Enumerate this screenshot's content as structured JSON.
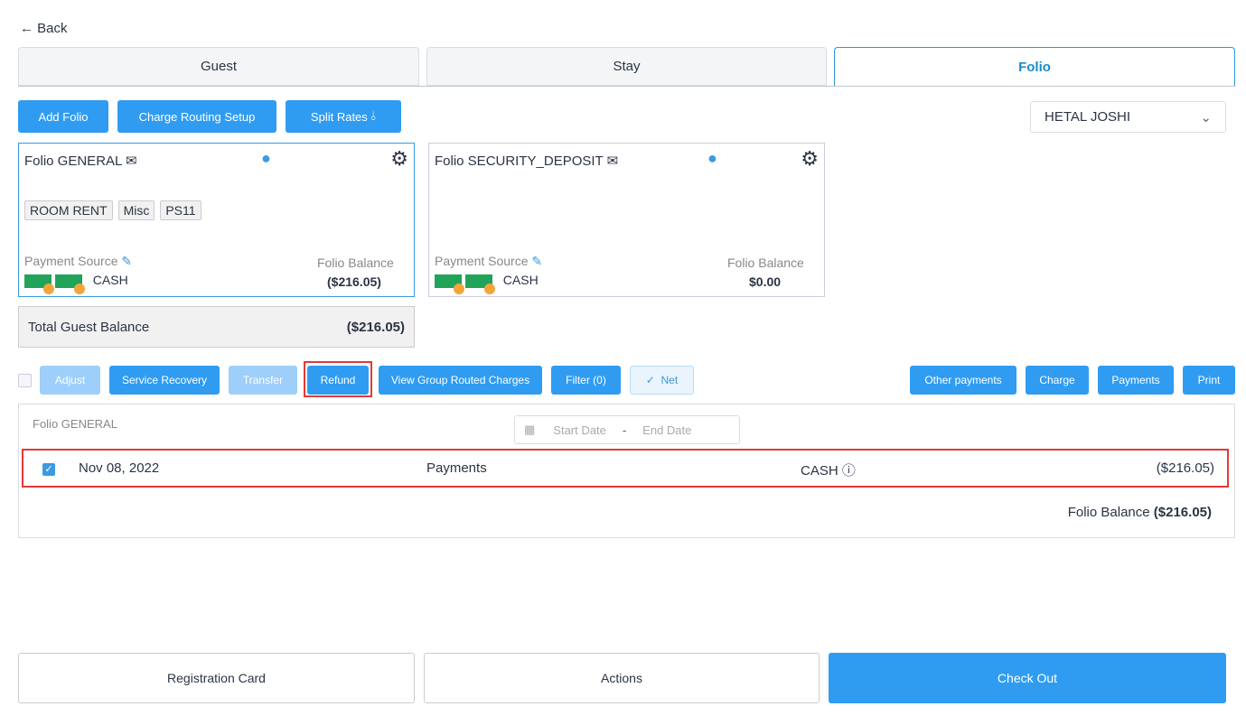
{
  "back": "Back",
  "tabs": [
    "Guest",
    "Stay",
    "Folio"
  ],
  "toolbar": {
    "add_folio": "Add Folio",
    "charge_routing": "Charge Routing Setup",
    "split_rates": "Split Rates",
    "guest_select": "HETAL JOSHI"
  },
  "folios": [
    {
      "title": "Folio GENERAL",
      "chips": [
        "ROOM RENT",
        "Misc",
        "PS11"
      ],
      "payment_source_label": "Payment Source",
      "payment_source": "CASH",
      "balance_label": "Folio Balance",
      "balance": "($216.05)"
    },
    {
      "title": "Folio SECURITY_DEPOSIT",
      "chips": [],
      "payment_source_label": "Payment Source",
      "payment_source": "CASH",
      "balance_label": "Folio Balance",
      "balance": "$0.00"
    }
  ],
  "total": {
    "label": "Total Guest Balance",
    "value": "($216.05)"
  },
  "actions": {
    "adjust": "Adjust",
    "service_recovery": "Service Recovery",
    "transfer": "Transfer",
    "refund": "Refund",
    "view_group": "View Group Routed Charges",
    "filter": "Filter (0)",
    "net": "Net",
    "other_payments": "Other payments",
    "charge": "Charge",
    "payments": "Payments",
    "print": "Print"
  },
  "ledger": {
    "title": "Folio GENERAL",
    "start_placeholder": "Start Date",
    "end_placeholder": "End Date",
    "rows": [
      {
        "checked": true,
        "date": "Nov 08, 2022",
        "type": "Payments",
        "method": "CASH",
        "amount": "($216.05)"
      }
    ],
    "balance_label": "Folio Balance",
    "balance": "($216.05)"
  },
  "footer": {
    "registration": "Registration Card",
    "actions": "Actions",
    "checkout": "Check Out"
  },
  "colors": {
    "accent": "#2f9cf2",
    "highlight": "#e53935"
  }
}
